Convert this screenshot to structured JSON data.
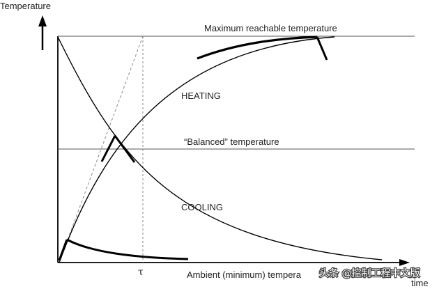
{
  "labels": {
    "y_axis": "Temperature",
    "x_axis": "time",
    "max_temp": "Maximum reachable temperature",
    "balanced_temp": "“Balanced” temperature",
    "heating": "HEATING",
    "cooling": "COOLING",
    "tau": "τ",
    "ambient": "Ambient (minimum) tempera"
  },
  "watermark": "头条 @控制工程中文版",
  "colors": {
    "background": "#ffffff",
    "ink": "#000000",
    "guide_line": "#555555",
    "dashed": "#888888"
  }
}
